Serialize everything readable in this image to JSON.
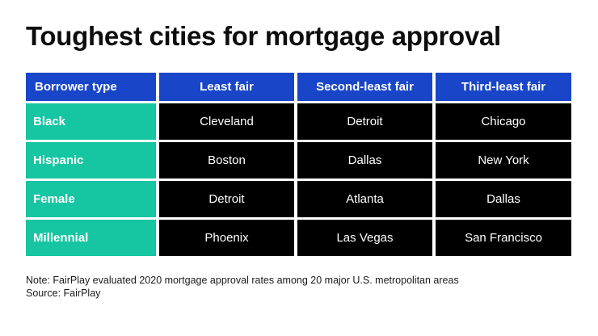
{
  "title": "Toughest cities for mortgage approval",
  "chart_data": {
    "type": "table",
    "title": "Toughest cities for mortgage approval",
    "columns": [
      "Borrower type",
      "Least fair",
      "Second-least fair",
      "Third-least fair"
    ],
    "rows": [
      {
        "label": "Black",
        "values": [
          "Cleveland",
          "Detroit",
          "Chicago"
        ]
      },
      {
        "label": "Hispanic",
        "values": [
          "Boston",
          "Dallas",
          "New York"
        ]
      },
      {
        "label": "Female",
        "values": [
          "Detroit",
          "Atlanta",
          "Dallas"
        ]
      },
      {
        "label": "Millennial",
        "values": [
          "Phoenix",
          "Las Vegas",
          "San Francisco"
        ]
      }
    ]
  },
  "footer": {
    "note": "Note: FairPlay evaluated 2020 mortgage approval rates among 20 major U.S. metropolitan areas",
    "source": "Source: FairPlay"
  },
  "colors": {
    "header": "#1946c8",
    "row_label": "#16c5a2",
    "cell": "#000000"
  }
}
